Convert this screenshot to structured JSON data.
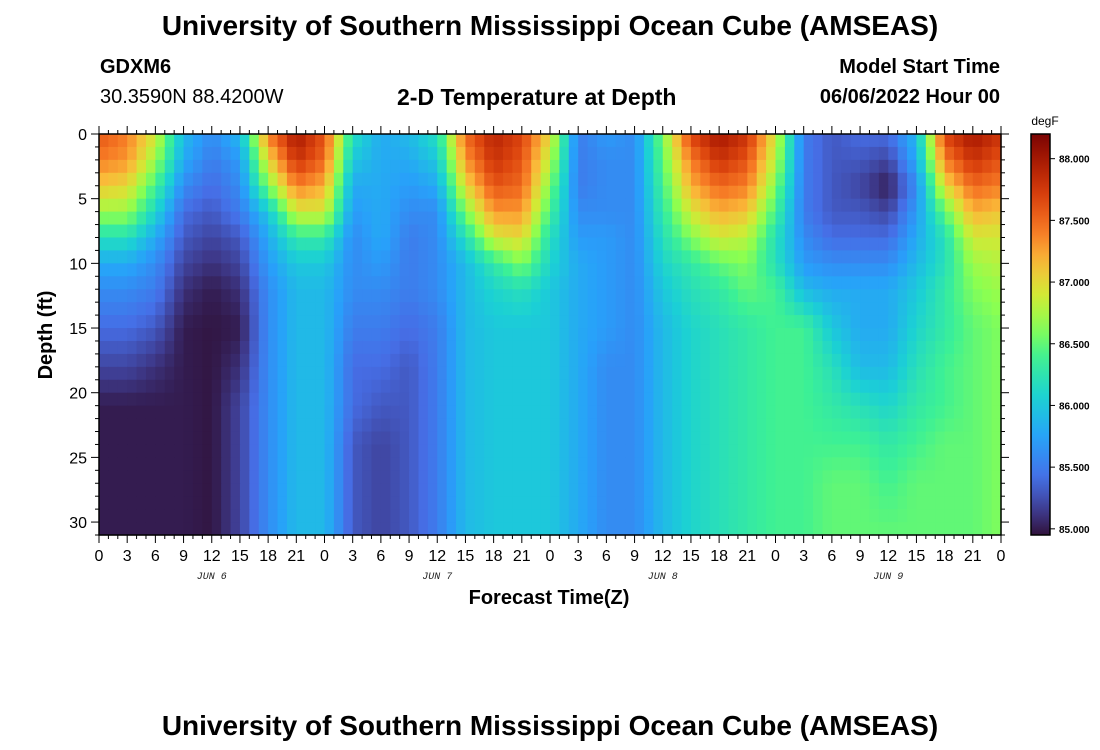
{
  "header": {
    "title": "University of Southern Mississippi Ocean Cube (AMSEAS)",
    "station_id": "GDXM6",
    "coordinates": "30.3590N  88.4200W",
    "subtitle": "2-D Temperature at Depth",
    "model_start_label": "Model Start Time",
    "model_start_value": "06/06/2022 Hour 00"
  },
  "footer": {
    "title": "University of Southern Mississippi Ocean Cube (AMSEAS)"
  },
  "chart_data": {
    "type": "heatmap",
    "xlabel": "Forecast Time(Z)",
    "ylabel": "Depth (ft)",
    "colorbar_label": "degF",
    "x_hours": [
      0,
      3,
      6,
      9,
      12,
      15,
      18,
      21,
      24,
      27,
      30,
      33,
      36,
      39,
      42,
      45,
      48,
      51,
      54,
      57,
      60,
      63,
      66,
      69,
      72,
      75,
      78,
      81,
      84,
      87,
      90,
      93,
      96
    ],
    "x_tick_labels": [
      "0",
      "3",
      "6",
      "9",
      "12",
      "15",
      "18",
      "21",
      "0",
      "3",
      "6",
      "9",
      "12",
      "15",
      "18",
      "21",
      "0",
      "3",
      "6",
      "9",
      "12",
      "15",
      "18",
      "21",
      "0",
      "3",
      "6",
      "9",
      "12",
      "15",
      "18",
      "21",
      "0"
    ],
    "day_labels": [
      {
        "hour": 12,
        "label": "JUN 6"
      },
      {
        "hour": 36,
        "label": "JUN 7"
      },
      {
        "hour": 60,
        "label": "JUN 8"
      },
      {
        "hour": 84,
        "label": "JUN 9"
      }
    ],
    "y_ticks": [
      0,
      5,
      10,
      15,
      20,
      25,
      30
    ],
    "ylim": [
      0,
      31
    ],
    "xlim": [
      0,
      96
    ],
    "depths": [
      0,
      2,
      4,
      6,
      8,
      10,
      12,
      15,
      18,
      21,
      24,
      27,
      31
    ],
    "colorbar_ticks": [
      "85.000",
      "85.500",
      "86.000",
      "86.500",
      "87.000",
      "87.500",
      "88.000"
    ],
    "vmin": 84.95,
    "vmax": 88.2,
    "values": [
      [
        87.6,
        87.4,
        86.9,
        85.9,
        85.6,
        85.9,
        87.4,
        88.0,
        87.6,
        86.2,
        85.8,
        85.9,
        86.2,
        87.5,
        87.9,
        87.7,
        87.0,
        85.5,
        85.7,
        85.6,
        86.6,
        87.7,
        88.0,
        87.8,
        86.9,
        85.5,
        85.3,
        85.4,
        85.4,
        85.9,
        87.7,
        88.0,
        87.8
      ],
      [
        87.4,
        87.3,
        86.7,
        85.8,
        85.5,
        85.7,
        87.0,
        87.8,
        87.5,
        86.0,
        85.8,
        85.8,
        86.0,
        87.3,
        87.8,
        87.6,
        86.8,
        85.5,
        85.6,
        85.6,
        86.5,
        87.4,
        87.8,
        87.6,
        86.8,
        85.5,
        85.3,
        85.3,
        85.2,
        85.8,
        87.4,
        87.8,
        87.6
      ],
      [
        87.1,
        87.0,
        86.4,
        85.6,
        85.4,
        85.6,
        86.6,
        87.4,
        87.2,
        85.8,
        85.8,
        85.7,
        85.8,
        87.0,
        87.6,
        87.5,
        86.6,
        85.5,
        85.6,
        85.6,
        86.4,
        87.2,
        87.5,
        87.4,
        86.6,
        85.5,
        85.3,
        85.2,
        85.0,
        85.6,
        87.0,
        87.5,
        87.4
      ],
      [
        86.7,
        86.7,
        86.1,
        85.4,
        85.3,
        85.5,
        86.0,
        86.9,
        86.9,
        85.7,
        85.8,
        85.6,
        85.6,
        86.6,
        87.3,
        87.3,
        86.4,
        85.6,
        85.6,
        85.6,
        86.3,
        86.9,
        87.2,
        87.1,
        86.4,
        85.5,
        85.3,
        85.3,
        85.2,
        85.7,
        86.5,
        87.2,
        87.1
      ],
      [
        86.2,
        86.2,
        85.8,
        85.3,
        85.2,
        85.3,
        85.8,
        86.3,
        86.3,
        85.6,
        85.8,
        85.5,
        85.6,
        86.2,
        86.9,
        87.0,
        86.2,
        85.7,
        85.7,
        85.6,
        86.2,
        86.6,
        86.9,
        86.8,
        86.2,
        85.6,
        85.4,
        85.4,
        85.4,
        85.8,
        86.2,
        86.9,
        86.9
      ],
      [
        85.8,
        85.8,
        85.6,
        85.2,
        85.1,
        85.2,
        85.7,
        86.0,
        86.0,
        85.6,
        85.7,
        85.5,
        85.6,
        85.9,
        86.3,
        86.6,
        86.1,
        85.8,
        85.7,
        85.6,
        86.1,
        86.3,
        86.5,
        86.6,
        86.2,
        85.7,
        85.6,
        85.6,
        85.6,
        85.9,
        86.2,
        86.7,
        86.8
      ],
      [
        85.6,
        85.6,
        85.5,
        85.1,
        85.0,
        85.1,
        85.6,
        85.9,
        85.9,
        85.6,
        85.6,
        85.5,
        85.6,
        85.9,
        86.1,
        86.2,
        86.0,
        85.8,
        85.7,
        85.6,
        86.0,
        86.2,
        86.3,
        86.5,
        86.4,
        85.9,
        85.8,
        85.8,
        85.8,
        86.0,
        86.3,
        86.6,
        86.7
      ],
      [
        85.4,
        85.4,
        85.3,
        85.0,
        84.97,
        85.0,
        85.6,
        85.9,
        85.9,
        85.5,
        85.5,
        85.4,
        85.5,
        85.9,
        86.0,
        86.0,
        86.0,
        85.8,
        85.7,
        85.6,
        85.9,
        86.1,
        86.2,
        86.3,
        86.4,
        86.4,
        86.0,
        85.8,
        85.8,
        86.1,
        86.3,
        86.5,
        86.6
      ],
      [
        85.2,
        85.2,
        85.1,
        85.0,
        84.97,
        85.1,
        85.6,
        85.9,
        85.9,
        85.4,
        85.4,
        85.3,
        85.5,
        85.9,
        86.0,
        86.0,
        86.0,
        85.8,
        85.6,
        85.6,
        85.9,
        86.1,
        86.2,
        86.3,
        86.4,
        86.4,
        86.2,
        85.9,
        85.9,
        86.2,
        86.4,
        86.5,
        86.6
      ],
      [
        85.0,
        85.0,
        85.0,
        85.0,
        84.97,
        85.2,
        85.6,
        85.9,
        85.9,
        85.4,
        85.3,
        85.3,
        85.5,
        85.9,
        86.0,
        86.0,
        86.0,
        85.8,
        85.6,
        85.6,
        85.9,
        86.1,
        86.2,
        86.3,
        86.4,
        86.4,
        86.3,
        86.2,
        86.1,
        86.3,
        86.4,
        86.5,
        86.6
      ],
      [
        85.0,
        85.0,
        85.0,
        85.0,
        84.97,
        85.2,
        85.6,
        85.9,
        85.9,
        85.3,
        85.2,
        85.3,
        85.5,
        85.9,
        86.0,
        86.0,
        86.0,
        85.8,
        85.6,
        85.6,
        85.9,
        86.1,
        86.2,
        86.3,
        86.4,
        86.4,
        86.4,
        86.4,
        86.3,
        86.4,
        86.5,
        86.5,
        86.6
      ],
      [
        85.0,
        85.0,
        85.0,
        85.0,
        84.97,
        85.2,
        85.6,
        85.9,
        85.9,
        85.3,
        85.2,
        85.3,
        85.5,
        85.9,
        86.0,
        86.0,
        86.0,
        85.8,
        85.6,
        85.6,
        85.9,
        86.1,
        86.2,
        86.3,
        86.4,
        86.4,
        86.5,
        86.5,
        86.4,
        86.5,
        86.5,
        86.5,
        86.6
      ],
      [
        85.0,
        85.0,
        85.0,
        85.0,
        84.97,
        85.2,
        85.6,
        85.9,
        85.9,
        85.3,
        85.2,
        85.3,
        85.5,
        85.9,
        86.0,
        86.0,
        86.0,
        85.8,
        85.6,
        85.6,
        85.9,
        86.1,
        86.2,
        86.3,
        86.4,
        86.4,
        86.5,
        86.5,
        86.5,
        86.5,
        86.5,
        86.5,
        86.6
      ]
    ]
  }
}
